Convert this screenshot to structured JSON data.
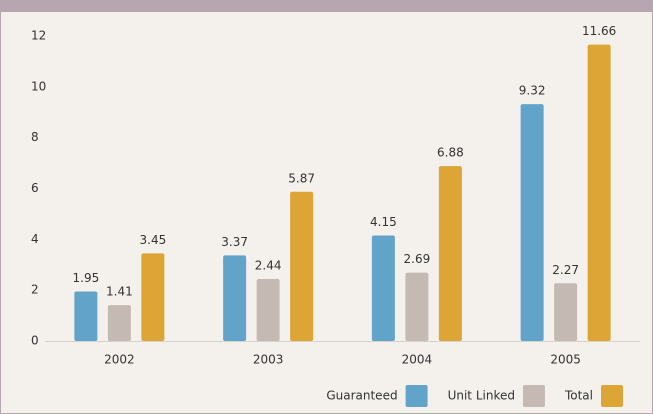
{
  "chart_data": {
    "type": "bar",
    "categories": [
      "2002",
      "2003",
      "2004",
      "2005"
    ],
    "series": [
      {
        "name": "Guaranteed",
        "color": "#62a4c9",
        "values": [
          1.95,
          3.37,
          4.15,
          9.32
        ]
      },
      {
        "name": "Unit Linked",
        "color": "#c5b9b3",
        "values": [
          1.41,
          2.44,
          2.69,
          2.27
        ]
      },
      {
        "name": "Total",
        "color": "#dca536",
        "values": [
          3.45,
          5.87,
          6.88,
          11.66
        ]
      }
    ],
    "ylim": [
      0,
      12
    ],
    "yticks": [
      0,
      2,
      4,
      6,
      8,
      10,
      12
    ],
    "grid": false,
    "legend": "bottom-right"
  }
}
